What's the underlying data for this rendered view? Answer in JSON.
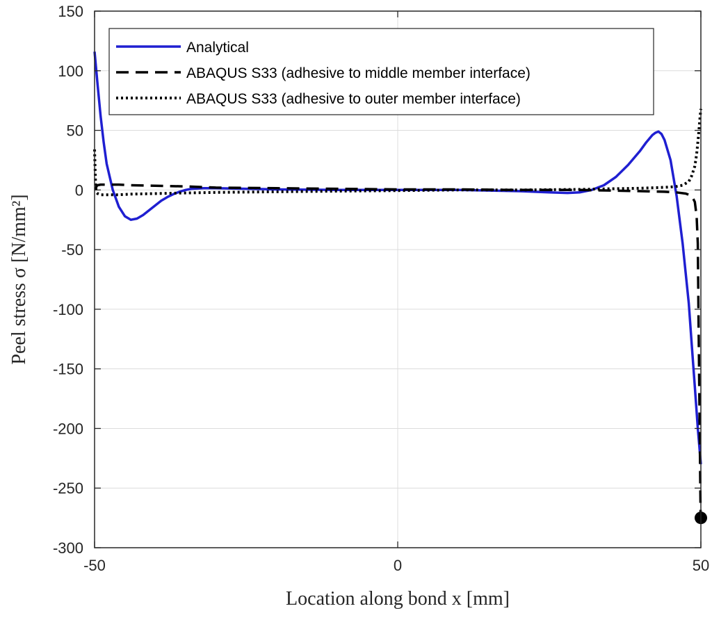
{
  "chart_data": {
    "type": "line",
    "xlabel": "Location along bond x [mm]",
    "ylabel": "Peel stress σ [N/mm²]",
    "xlim": [
      -50,
      50
    ],
    "ylim": [
      -300,
      150
    ],
    "xticks": [
      -50,
      0,
      50
    ],
    "yticks": [
      150,
      100,
      50,
      0,
      -50,
      -100,
      -150,
      -200,
      -250,
      -300
    ],
    "grid": true,
    "legend_position": "top-left",
    "series": [
      {
        "name": "Analytical",
        "style": "solid",
        "color": "#1f1fd1",
        "x": [
          -50,
          -49.5,
          -49,
          -48.5,
          -48,
          -47,
          -46,
          -45,
          -44,
          -43,
          -42,
          -41,
          -40,
          -39,
          -38,
          -37,
          -36,
          -35,
          -34,
          -32,
          -30,
          -25,
          -20,
          -10,
          0,
          10,
          20,
          25,
          28,
          30,
          32,
          34,
          36,
          38,
          40,
          41,
          42,
          42.5,
          43,
          43.5,
          44,
          45,
          46,
          47,
          48,
          48.5,
          49,
          49.5,
          50
        ],
        "y": [
          116,
          88,
          62,
          40,
          22,
          0,
          -14,
          -22,
          -25,
          -24,
          -21,
          -17,
          -13,
          -9,
          -6,
          -3.5,
          -1.5,
          0,
          1,
          1.5,
          1.5,
          1,
          0.5,
          0,
          0,
          0,
          -1,
          -2,
          -2.5,
          -2,
          0,
          4,
          11,
          21,
          33,
          40,
          46,
          48,
          49,
          47,
          42,
          25,
          -5,
          -45,
          -95,
          -130,
          -165,
          -200,
          -230
        ]
      },
      {
        "name": "ABAQUS S33 (adhesive to middle member interface)",
        "style": "dashed",
        "color": "#000000",
        "x": [
          -49.8,
          -49.7,
          -49.5,
          -49,
          -48,
          -46,
          -44,
          -40,
          -35,
          -30,
          -20,
          -10,
          0,
          10,
          20,
          30,
          40,
          44,
          46,
          47.5,
          48.5,
          49,
          49.3,
          49.5,
          49.6,
          49.7,
          49.8,
          49.9,
          49.95,
          50
        ],
        "y": [
          0,
          3,
          4,
          4.5,
          4.5,
          4.5,
          4,
          3.5,
          3,
          2,
          1.5,
          1,
          0.5,
          0.5,
          0,
          0,
          -1,
          -1.5,
          -2,
          -3,
          -5,
          -10,
          -22,
          -45,
          -100,
          -150,
          -200,
          -245,
          -270,
          -275
        ]
      },
      {
        "name": "ABAQUS S33 (adhesive to outer member interface)",
        "style": "dotted",
        "color": "#000000",
        "x": [
          -50,
          -49.9,
          -49.8,
          -49.7,
          -49.5,
          -49,
          -48,
          -46,
          -44,
          -40,
          -35,
          -30,
          -20,
          -10,
          0,
          10,
          20,
          30,
          35,
          40,
          43,
          45,
          46,
          47,
          48,
          48.5,
          49,
          49.3,
          49.6,
          49.8,
          50
        ],
        "y": [
          34,
          15,
          2,
          -2,
          -3,
          -4,
          -4,
          -4,
          -3.5,
          -3,
          -2.5,
          -2,
          -1.5,
          -1,
          -0.5,
          0,
          0,
          0.5,
          1,
          1.5,
          2,
          2.5,
          3,
          4,
          7,
          12,
          20,
          30,
          45,
          58,
          68
        ]
      }
    ],
    "markers": [
      {
        "x": 50,
        "y": -275
      }
    ]
  }
}
